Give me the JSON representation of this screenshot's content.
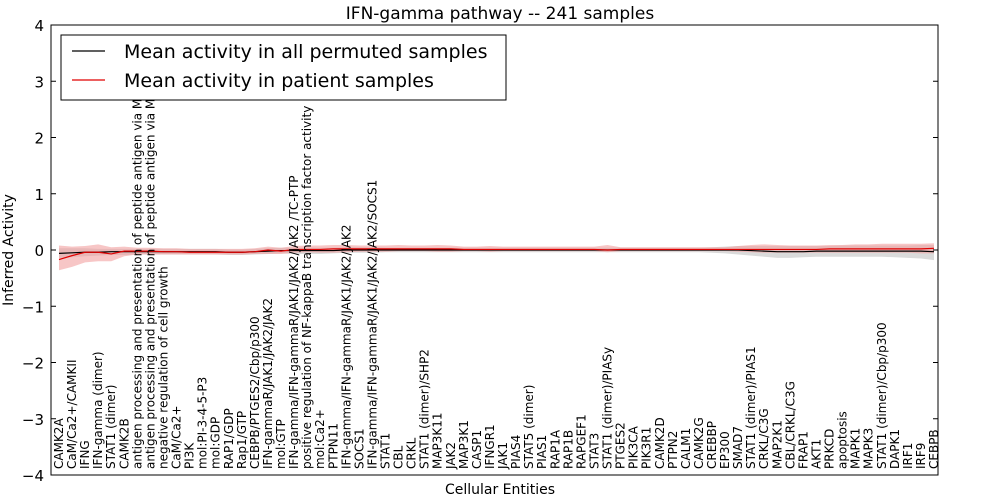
{
  "chart_data": {
    "type": "line",
    "title": "IFN-gamma pathway -- 241 samples",
    "xlabel": "Cellular Entities",
    "ylabel": "Inferred Activity",
    "ylim": [
      -4,
      4
    ],
    "yticks": [
      "4",
      "3",
      "2",
      "1",
      "0",
      "−1",
      "−2",
      "−3",
      "−4"
    ],
    "grid": false,
    "legend_position": "top-left",
    "categories": [
      "CAMK2A",
      "CaM/Ca2+/CAMKII",
      "IFNG",
      "IFN-gamma (dimer)",
      "STAT1 (dimer)",
      "CAMK2B",
      "antigen processing and presentation of peptide antigen via MHC class I",
      "antigen processing and presentation of peptide antigen via MHC class II",
      "negative regulation of cell growth",
      "CaM/Ca2+",
      "PI3K",
      "mol:PI-3-4-5-P3",
      "mol:GDP",
      "RAP1/GDP",
      "Rap1/GTP",
      "CEBPB/PTGES2/Cbp/p300",
      "IFN-gammaR/JAK1/JAK2/JAK2",
      "mol:GTP",
      "IFN-gamma/IFN-gammaR/JAK1/JAK2/JAK2 /TC-PTP",
      "positive regulation of NF-kappaB transcription factor activity",
      "mol:Ca2+",
      "PTPN11",
      "IFN-gamma/IFN-gammaR/JAK1/JAK2/JAK2",
      "SOCS1",
      "IFN-gamma/IFN-gammaR/JAK1/JAK2/JAK2/SOCS1",
      "STAT1",
      "CBL",
      "CRKL",
      "STAT1 (dimer)/SHP2",
      "MAP3K11",
      "JAK2",
      "MAP3K1",
      "CASP1",
      "IFNGR1",
      "JAK1",
      "PIAS4",
      "STAT5 (dimer)",
      "PIAS1",
      "RAP1A",
      "RAP1B",
      "RAPGEF1",
      "STAT3",
      "STAT1 (dimer)/PIASy",
      "PTGES2",
      "PIK3CA",
      "PIK3R1",
      "CAMK2D",
      "PTPN2",
      "CALM1",
      "CAMK2G",
      "CREBBP",
      "EP300",
      "SMAD7",
      "STAT1 (dimer)/PIAS1",
      "CRKL/C3G",
      "MAP2K1",
      "CBL/CRKL/C3G",
      "FRAP1",
      "AKT1",
      "PRKCD",
      "apoptosis",
      "MAPK1",
      "MAPK3",
      "STAT1 (dimer)/Cbp/p300",
      "DAPK1",
      "IRF1",
      "IRF9",
      "CEBPB"
    ],
    "series": [
      {
        "name": "Mean activity in all permuted samples",
        "color": "#000000",
        "values": [
          -0.06,
          -0.05,
          -0.04,
          -0.04,
          -0.03,
          -0.03,
          -0.03,
          -0.03,
          -0.03,
          -0.03,
          -0.03,
          -0.03,
          -0.03,
          -0.04,
          -0.04,
          -0.03,
          -0.02,
          -0.01,
          -0.01,
          -0.01,
          -0.01,
          -0.01,
          0,
          0,
          0,
          0,
          0,
          0,
          0,
          0,
          0,
          0,
          0,
          0,
          0,
          0,
          0,
          0,
          0,
          0,
          0,
          0,
          0,
          0,
          0,
          0,
          0,
          0,
          0,
          0,
          0,
          0,
          0,
          -0.01,
          -0.02,
          -0.03,
          -0.03,
          -0.03,
          -0.02,
          -0.02,
          -0.02,
          -0.02,
          -0.02,
          -0.02,
          -0.02,
          -0.02,
          -0.02,
          -0.03
        ],
        "band": {
          "color": "#bbbbbb",
          "lower": [
            -0.14,
            -0.13,
            -0.11,
            -0.1,
            -0.09,
            -0.09,
            -0.08,
            -0.08,
            -0.08,
            -0.08,
            -0.08,
            -0.08,
            -0.08,
            -0.09,
            -0.09,
            -0.08,
            -0.07,
            -0.06,
            -0.07,
            -0.07,
            -0.07,
            -0.06,
            -0.05,
            -0.05,
            -0.05,
            -0.04,
            -0.04,
            -0.04,
            -0.04,
            -0.04,
            -0.04,
            -0.04,
            -0.04,
            -0.04,
            -0.04,
            -0.04,
            -0.04,
            -0.04,
            -0.04,
            -0.04,
            -0.04,
            -0.04,
            -0.04,
            -0.04,
            -0.04,
            -0.04,
            -0.04,
            -0.04,
            -0.04,
            -0.04,
            -0.05,
            -0.06,
            -0.08,
            -0.1,
            -0.12,
            -0.14,
            -0.14,
            -0.13,
            -0.12,
            -0.12,
            -0.12,
            -0.12,
            -0.12,
            -0.12,
            -0.13,
            -0.14,
            -0.15,
            -0.18
          ],
          "upper": [
            0.03,
            0.03,
            0.03,
            0.02,
            0.02,
            0.02,
            0.02,
            0.02,
            0.02,
            0.02,
            0.02,
            0.02,
            0.02,
            0.01,
            0.01,
            0.02,
            0.03,
            0.04,
            0.04,
            0.04,
            0.04,
            0.04,
            0.05,
            0.05,
            0.05,
            0.04,
            0.04,
            0.04,
            0.04,
            0.04,
            0.04,
            0.04,
            0.04,
            0.04,
            0.04,
            0.04,
            0.04,
            0.04,
            0.04,
            0.04,
            0.04,
            0.04,
            0.04,
            0.04,
            0.04,
            0.04,
            0.04,
            0.04,
            0.04,
            0.04,
            0.05,
            0.06,
            0.07,
            0.07,
            0.07,
            0.07,
            0.07,
            0.07,
            0.07,
            0.07,
            0.08,
            0.08,
            0.08,
            0.08,
            0.08,
            0.08,
            0.09,
            0.09
          ]
        }
      },
      {
        "name": "Mean activity in patient samples",
        "color": "#e00000",
        "values": [
          -0.17,
          -0.1,
          -0.04,
          -0.04,
          -0.07,
          -0.02,
          -0.02,
          -0.02,
          -0.03,
          -0.03,
          -0.04,
          -0.04,
          -0.04,
          -0.04,
          -0.04,
          -0.03,
          0,
          -0.02,
          0.01,
          0.01,
          0.01,
          0.02,
          0.02,
          0.02,
          0.02,
          0.02,
          0.02,
          0.02,
          0.02,
          0.02,
          0.02,
          0.01,
          0.01,
          0.01,
          0.01,
          0.01,
          0.01,
          0.01,
          0.01,
          0.01,
          0.01,
          0.01,
          0,
          0.01,
          0.01,
          0.01,
          0.01,
          0.01,
          0.01,
          0.01,
          0.01,
          0.01,
          0.01,
          0.01,
          0.01,
          0.01,
          0.01,
          0.01,
          0.01,
          0.02,
          0.02,
          0.02,
          0.02,
          0.02,
          0.02,
          0.02,
          0.02,
          0.03
        ],
        "band": {
          "color": "#f2a0a0",
          "lower": [
            -0.36,
            -0.3,
            -0.22,
            -0.2,
            -0.2,
            -0.11,
            -0.08,
            -0.08,
            -0.08,
            -0.08,
            -0.08,
            -0.08,
            -0.08,
            -0.08,
            -0.08,
            -0.07,
            -0.07,
            -0.07,
            -0.05,
            -0.04,
            -0.05,
            -0.05,
            -0.04,
            -0.03,
            -0.03,
            -0.03,
            -0.02,
            -0.02,
            -0.02,
            -0.03,
            -0.03,
            -0.02,
            -0.02,
            -0.03,
            -0.02,
            -0.02,
            -0.02,
            -0.02,
            -0.02,
            -0.02,
            -0.02,
            -0.02,
            -0.04,
            -0.02,
            -0.02,
            -0.02,
            -0.02,
            -0.02,
            -0.02,
            -0.02,
            -0.02,
            -0.02,
            -0.03,
            -0.04,
            -0.05,
            -0.05,
            -0.05,
            -0.05,
            -0.05,
            -0.05,
            -0.05,
            -0.05,
            -0.05,
            -0.05,
            -0.05,
            -0.05,
            -0.06,
            -0.06
          ],
          "upper": [
            0.08,
            0.06,
            0.07,
            0.1,
            0.05,
            0.06,
            0.04,
            0.04,
            0.03,
            0.03,
            0.02,
            0.02,
            0.02,
            0.02,
            0.02,
            0.03,
            0.06,
            0.04,
            0.07,
            0.08,
            0.08,
            0.09,
            0.09,
            0.08,
            0.08,
            0.08,
            0.09,
            0.08,
            0.08,
            0.09,
            0.08,
            0.06,
            0.06,
            0.07,
            0.06,
            0.06,
            0.06,
            0.06,
            0.06,
            0.06,
            0.06,
            0.06,
            0.09,
            0.05,
            0.05,
            0.05,
            0.05,
            0.05,
            0.05,
            0.05,
            0.05,
            0.05,
            0.07,
            0.09,
            0.1,
            0.09,
            0.08,
            0.08,
            0.08,
            0.09,
            0.09,
            0.1,
            0.1,
            0.11,
            0.11,
            0.11,
            0.11,
            0.12
          ]
        }
      }
    ]
  }
}
